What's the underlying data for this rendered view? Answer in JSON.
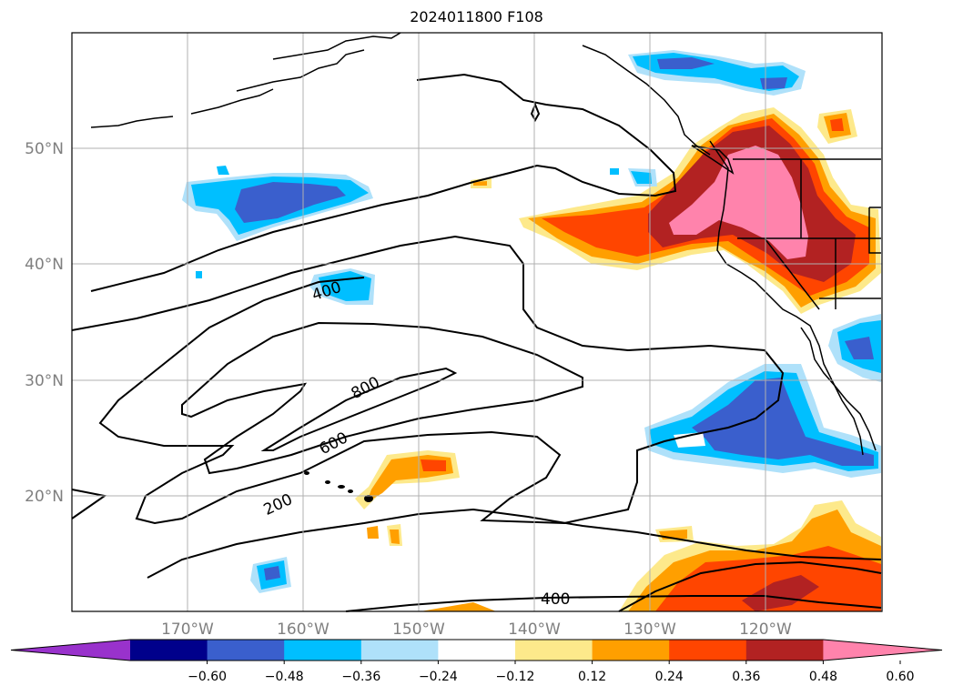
{
  "title": "2024011800 F108",
  "map": {
    "projection": "plate-carree",
    "lon_range": [
      -180,
      -110
    ],
    "lat_range": [
      10,
      60
    ],
    "gridlines": true,
    "lat_labels": [
      "50°N",
      "40°N",
      "30°N",
      "20°N"
    ],
    "lon_labels": [
      "170°W",
      "160°W",
      "150°W",
      "140°W",
      "130°W",
      "120°W"
    ],
    "contour_labels": [
      "400",
      "800",
      "600",
      "200",
      "400"
    ]
  },
  "colorbar": {
    "extend": "both",
    "orientation": "horizontal",
    "tick_labels": [
      "−0.60",
      "−0.48",
      "−0.36",
      "−0.24",
      "−0.12",
      "0.12",
      "0.24",
      "0.36",
      "0.48",
      "0.60"
    ],
    "colors": [
      "#9932cc",
      "#00008b",
      "#3a5fcd",
      "#00bfff",
      "#afe1fa",
      "#ffffff",
      "#fde98b",
      "#ff9f00",
      "#ff4500",
      "#b22222",
      "#ff83ac"
    ]
  }
}
